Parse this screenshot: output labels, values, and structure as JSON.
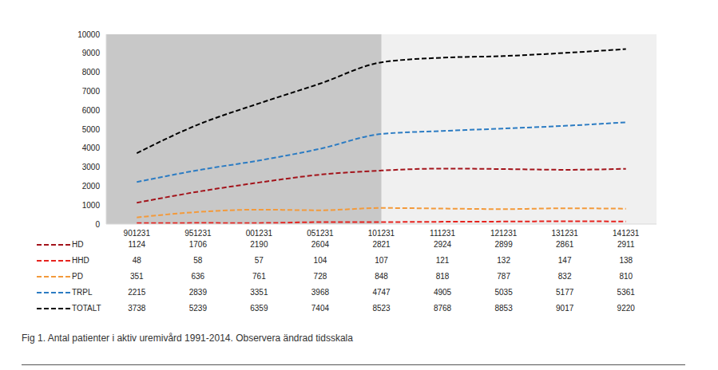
{
  "chart_data": {
    "type": "line",
    "title": "Fig 1. Antal patienter i aktiv uremivård 1991-2014. Observera ändrad tidsskala",
    "categories": [
      "901231",
      "951231",
      "001231",
      "051231",
      "101231",
      "111231",
      "121231",
      "131231",
      "141231"
    ],
    "shaded_until": "101231",
    "series": [
      {
        "name": "HD",
        "color": "#a3141b",
        "line_style": "dashed",
        "values": [
          1124,
          1706,
          2190,
          2604,
          2821,
          2924,
          2899,
          2861,
          2911
        ]
      },
      {
        "name": "HHD",
        "color": "#e6231e",
        "line_style": "dashed",
        "values": [
          48,
          58,
          57,
          104,
          107,
          121,
          132,
          147,
          138
        ]
      },
      {
        "name": "PD",
        "color": "#f39a3b",
        "line_style": "dashed",
        "values": [
          351,
          636,
          761,
          728,
          848,
          818,
          787,
          832,
          810
        ]
      },
      {
        "name": "TRPL",
        "color": "#2c7cc3",
        "line_style": "dashed",
        "values": [
          2215,
          2839,
          3351,
          3968,
          4747,
          4905,
          5035,
          5177,
          5361
        ]
      },
      {
        "name": "TOTALT",
        "color": "#000000",
        "line_style": "dashed",
        "values": [
          3738,
          5239,
          6359,
          7404,
          8523,
          8768,
          8853,
          9017,
          9220
        ]
      }
    ],
    "ylim": [
      0,
      10000
    ],
    "yticks": [
      0,
      1000,
      2000,
      3000,
      4000,
      5000,
      6000,
      7000,
      8000,
      9000,
      10000
    ],
    "grid": false
  }
}
